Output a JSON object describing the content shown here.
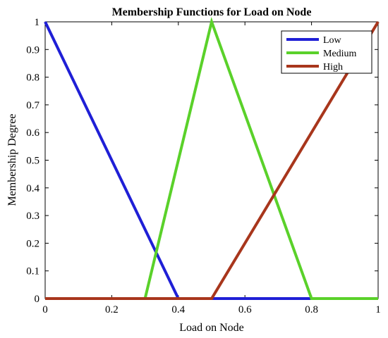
{
  "chart_data": {
    "type": "line",
    "title": "Membership Functions for Load on Node",
    "xlabel": "Load on Node",
    "ylabel": "Membership Degree",
    "xlim": [
      0,
      1
    ],
    "ylim": [
      0,
      1
    ],
    "xticks": [
      0,
      0.2,
      0.4,
      0.6,
      0.8,
      1
    ],
    "xtick_labels": [
      "0",
      "0.2",
      "0.4",
      "0.6",
      "0.8",
      "1"
    ],
    "yticks": [
      0,
      0.1,
      0.2,
      0.3,
      0.4,
      0.5,
      0.6,
      0.7,
      0.8,
      0.9,
      1
    ],
    "ytick_labels": [
      "0",
      "0.1",
      "0.2",
      "0.3",
      "0.4",
      "0.5",
      "0.6",
      "0.7",
      "0.8",
      "0.9",
      "1"
    ],
    "grid": false,
    "legend_position": "top-right",
    "series": [
      {
        "name": "Low",
        "color": "#1f1fd6",
        "x": [
          0,
          0.4,
          1
        ],
        "y": [
          1,
          0,
          0
        ]
      },
      {
        "name": "Medium",
        "color": "#5ad12a",
        "x": [
          0,
          0.3,
          0.5,
          0.8,
          1
        ],
        "y": [
          0,
          0,
          1,
          0,
          0
        ]
      },
      {
        "name": "High",
        "color": "#a8361c",
        "x": [
          0,
          0.5,
          1
        ],
        "y": [
          0,
          0,
          1
        ]
      }
    ]
  }
}
